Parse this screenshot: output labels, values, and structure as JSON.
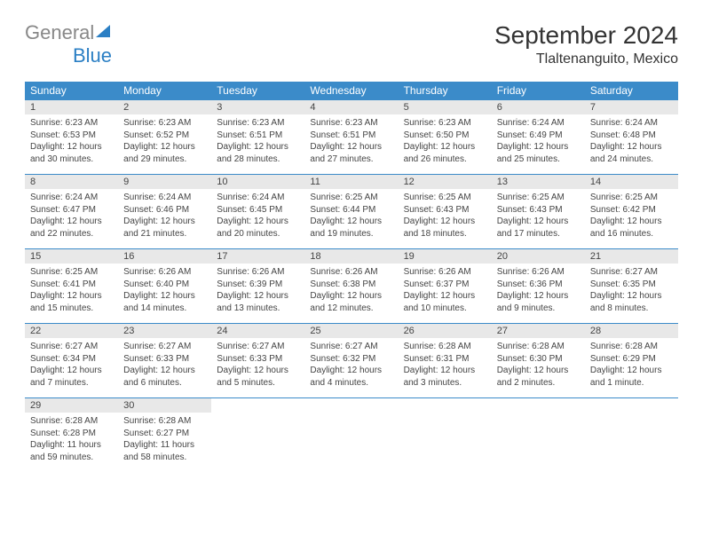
{
  "logo": {
    "general": "General",
    "blue": "Blue"
  },
  "title": "September 2024",
  "location": "Tlaltenanguito, Mexico",
  "colors": {
    "header_bg": "#3b8bc9",
    "header_text": "#ffffff",
    "daynum_bg": "#e8e8e8",
    "border": "#3b8bc9",
    "logo_gray": "#888888",
    "logo_blue": "#2b7fc4",
    "body_text": "#444444",
    "background": "#ffffff"
  },
  "weekdays": [
    "Sunday",
    "Monday",
    "Tuesday",
    "Wednesday",
    "Thursday",
    "Friday",
    "Saturday"
  ],
  "days": [
    {
      "n": 1,
      "sr": "6:23 AM",
      "ss": "6:53 PM",
      "dl": "12 hours and 30 minutes."
    },
    {
      "n": 2,
      "sr": "6:23 AM",
      "ss": "6:52 PM",
      "dl": "12 hours and 29 minutes."
    },
    {
      "n": 3,
      "sr": "6:23 AM",
      "ss": "6:51 PM",
      "dl": "12 hours and 28 minutes."
    },
    {
      "n": 4,
      "sr": "6:23 AM",
      "ss": "6:51 PM",
      "dl": "12 hours and 27 minutes."
    },
    {
      "n": 5,
      "sr": "6:23 AM",
      "ss": "6:50 PM",
      "dl": "12 hours and 26 minutes."
    },
    {
      "n": 6,
      "sr": "6:24 AM",
      "ss": "6:49 PM",
      "dl": "12 hours and 25 minutes."
    },
    {
      "n": 7,
      "sr": "6:24 AM",
      "ss": "6:48 PM",
      "dl": "12 hours and 24 minutes."
    },
    {
      "n": 8,
      "sr": "6:24 AM",
      "ss": "6:47 PM",
      "dl": "12 hours and 22 minutes."
    },
    {
      "n": 9,
      "sr": "6:24 AM",
      "ss": "6:46 PM",
      "dl": "12 hours and 21 minutes."
    },
    {
      "n": 10,
      "sr": "6:24 AM",
      "ss": "6:45 PM",
      "dl": "12 hours and 20 minutes."
    },
    {
      "n": 11,
      "sr": "6:25 AM",
      "ss": "6:44 PM",
      "dl": "12 hours and 19 minutes."
    },
    {
      "n": 12,
      "sr": "6:25 AM",
      "ss": "6:43 PM",
      "dl": "12 hours and 18 minutes."
    },
    {
      "n": 13,
      "sr": "6:25 AM",
      "ss": "6:43 PM",
      "dl": "12 hours and 17 minutes."
    },
    {
      "n": 14,
      "sr": "6:25 AM",
      "ss": "6:42 PM",
      "dl": "12 hours and 16 minutes."
    },
    {
      "n": 15,
      "sr": "6:25 AM",
      "ss": "6:41 PM",
      "dl": "12 hours and 15 minutes."
    },
    {
      "n": 16,
      "sr": "6:26 AM",
      "ss": "6:40 PM",
      "dl": "12 hours and 14 minutes."
    },
    {
      "n": 17,
      "sr": "6:26 AM",
      "ss": "6:39 PM",
      "dl": "12 hours and 13 minutes."
    },
    {
      "n": 18,
      "sr": "6:26 AM",
      "ss": "6:38 PM",
      "dl": "12 hours and 12 minutes."
    },
    {
      "n": 19,
      "sr": "6:26 AM",
      "ss": "6:37 PM",
      "dl": "12 hours and 10 minutes."
    },
    {
      "n": 20,
      "sr": "6:26 AM",
      "ss": "6:36 PM",
      "dl": "12 hours and 9 minutes."
    },
    {
      "n": 21,
      "sr": "6:27 AM",
      "ss": "6:35 PM",
      "dl": "12 hours and 8 minutes."
    },
    {
      "n": 22,
      "sr": "6:27 AM",
      "ss": "6:34 PM",
      "dl": "12 hours and 7 minutes."
    },
    {
      "n": 23,
      "sr": "6:27 AM",
      "ss": "6:33 PM",
      "dl": "12 hours and 6 minutes."
    },
    {
      "n": 24,
      "sr": "6:27 AM",
      "ss": "6:33 PM",
      "dl": "12 hours and 5 minutes."
    },
    {
      "n": 25,
      "sr": "6:27 AM",
      "ss": "6:32 PM",
      "dl": "12 hours and 4 minutes."
    },
    {
      "n": 26,
      "sr": "6:28 AM",
      "ss": "6:31 PM",
      "dl": "12 hours and 3 minutes."
    },
    {
      "n": 27,
      "sr": "6:28 AM",
      "ss": "6:30 PM",
      "dl": "12 hours and 2 minutes."
    },
    {
      "n": 28,
      "sr": "6:28 AM",
      "ss": "6:29 PM",
      "dl": "12 hours and 1 minute."
    },
    {
      "n": 29,
      "sr": "6:28 AM",
      "ss": "6:28 PM",
      "dl": "11 hours and 59 minutes."
    },
    {
      "n": 30,
      "sr": "6:28 AM",
      "ss": "6:27 PM",
      "dl": "11 hours and 58 minutes."
    }
  ],
  "labels": {
    "sunrise": "Sunrise:",
    "sunset": "Sunset:",
    "daylight": "Daylight:"
  },
  "start_weekday": 0,
  "typography": {
    "title_fontsize": 28,
    "location_fontsize": 16,
    "weekday_fontsize": 12,
    "daynum_fontsize": 11,
    "cell_fontsize": 10
  }
}
